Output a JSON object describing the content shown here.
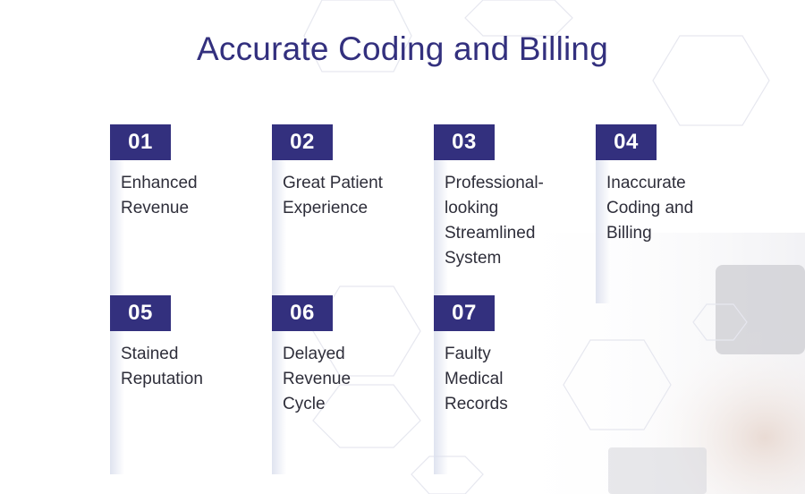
{
  "title": "Accurate Coding and Billing",
  "colors": {
    "accent": "#33307e",
    "text": "#2e2e3a"
  },
  "items": [
    {
      "number": "01",
      "label": "Enhanced\nRevenue"
    },
    {
      "number": "02",
      "label": "Great Patient\nExperience"
    },
    {
      "number": "03",
      "label": "Professional-\nlooking\nStreamlined\nSystem"
    },
    {
      "number": "04",
      "label": "Inaccurate\nCoding and\nBilling"
    },
    {
      "number": "05",
      "label": "Stained\nReputation"
    },
    {
      "number": "06",
      "label": "Delayed\nRevenue\nCycle"
    },
    {
      "number": "07",
      "label": "Faulty\nMedical\nRecords"
    }
  ]
}
